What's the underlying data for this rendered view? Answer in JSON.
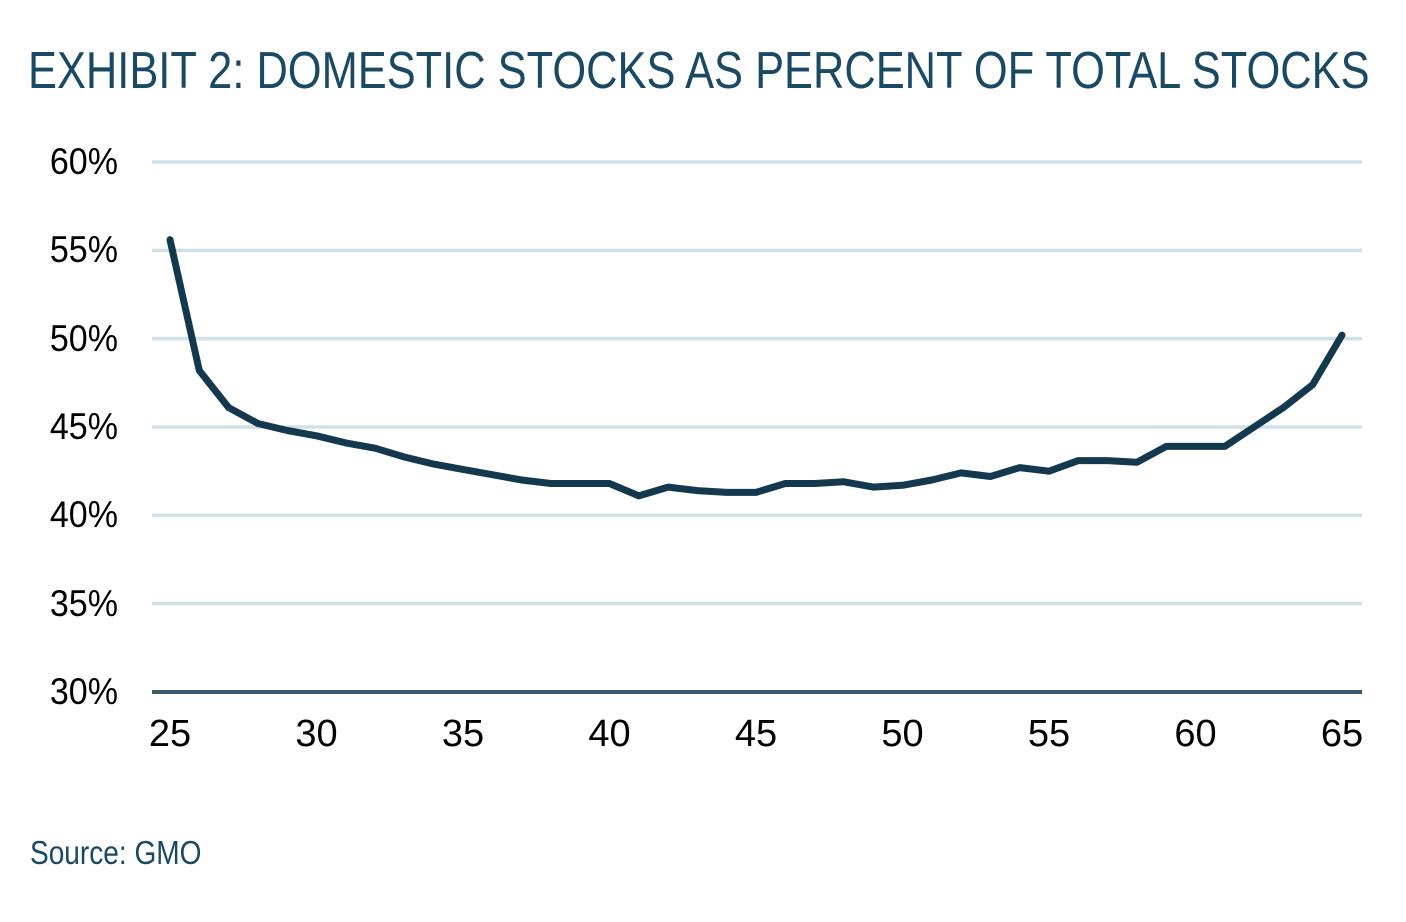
{
  "header": {
    "title": "EXHIBIT 2: DOMESTIC STOCKS AS PERCENT OF TOTAL STOCKS"
  },
  "footer": {
    "source": "Source: GMO"
  },
  "colors": {
    "title_text": "#1A4A63",
    "series_line": "#14384E",
    "gridline": "#CFE0E9",
    "axis_line": "#3D5A6B",
    "tick_label": "#000000",
    "background": "#FFFFFF"
  },
  "chart_data": {
    "type": "line",
    "title": "EXHIBIT 2: DOMESTIC STOCKS AS PERCENT OF TOTAL STOCKS",
    "xlabel": "",
    "ylabel": "",
    "xlim": [
      25,
      65
    ],
    "ylim": [
      30,
      60
    ],
    "grid": "horizontal",
    "legend": "none",
    "source": "Source: GMO",
    "xticks": [
      {
        "label": "25",
        "value": 25
      },
      {
        "label": "30",
        "value": 30
      },
      {
        "label": "35",
        "value": 35
      },
      {
        "label": "40",
        "value": 40
      },
      {
        "label": "45",
        "value": 45
      },
      {
        "label": "50",
        "value": 50
      },
      {
        "label": "55",
        "value": 55
      },
      {
        "label": "60",
        "value": 60
      },
      {
        "label": "65",
        "value": 65
      }
    ],
    "yticks": [
      {
        "label": "60%",
        "value": 60
      },
      {
        "label": "55%",
        "value": 55
      },
      {
        "label": "50%",
        "value": 50
      },
      {
        "label": "45%",
        "value": 45
      },
      {
        "label": "40%",
        "value": 40
      },
      {
        "label": "35%",
        "value": 35
      },
      {
        "label": "30%",
        "value": 30
      }
    ],
    "series": [
      {
        "name": "Domestic stocks as percent of total stocks",
        "x": [
          25,
          26,
          27,
          28,
          29,
          30,
          31,
          32,
          33,
          34,
          35,
          36,
          37,
          38,
          39,
          40,
          41,
          42,
          43,
          44,
          45,
          46,
          47,
          48,
          49,
          50,
          51,
          52,
          53,
          54,
          55,
          56,
          57,
          58,
          59,
          60,
          61,
          62,
          63,
          64,
          65
        ],
        "values": [
          55.6,
          48.2,
          46.1,
          45.2,
          44.8,
          44.5,
          44.1,
          43.8,
          43.3,
          42.9,
          42.6,
          42.3,
          42.0,
          41.8,
          41.8,
          41.8,
          41.1,
          41.6,
          41.4,
          41.3,
          41.3,
          41.8,
          41.8,
          41.9,
          41.6,
          41.7,
          42.0,
          42.4,
          42.2,
          42.7,
          42.5,
          43.1,
          43.1,
          43.0,
          43.9,
          43.9,
          43.9,
          45.0,
          46.1,
          47.4,
          50.2
        ]
      }
    ]
  }
}
